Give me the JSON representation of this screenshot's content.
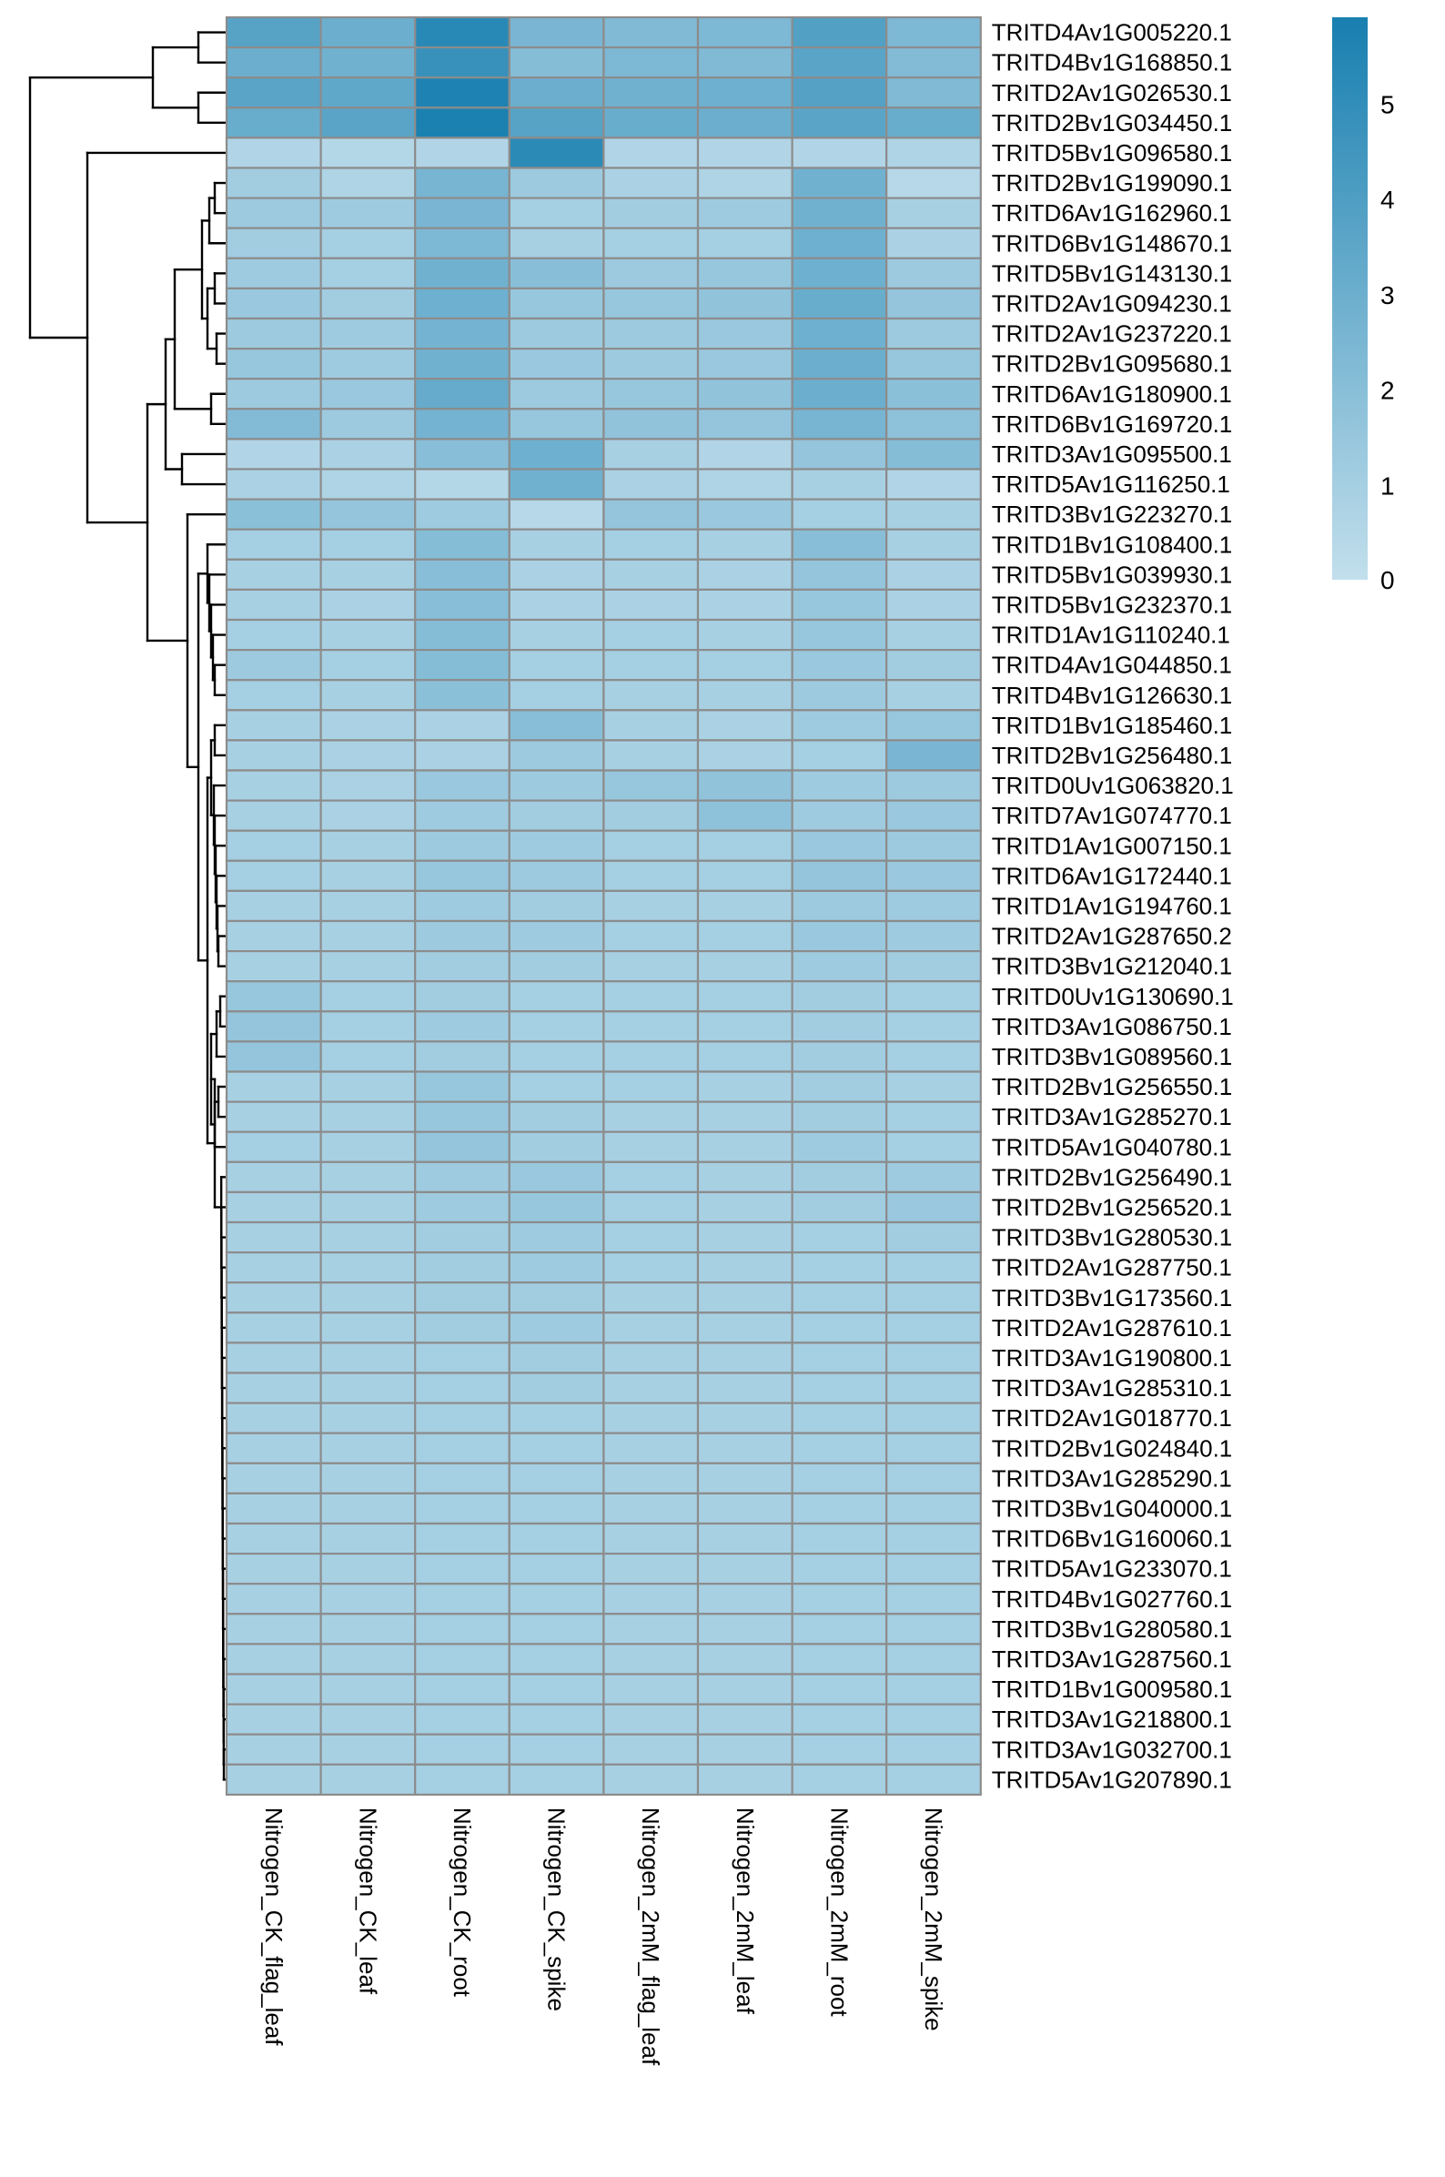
{
  "chart_data": {
    "type": "heatmap",
    "title": "",
    "xlabel": "",
    "ylabel": "",
    "columns": [
      "Nitrogen_CK_flag_leaf",
      "Nitrogen_CK_leaf",
      "Nitrogen_CK_root",
      "Nitrogen_CK_spike",
      "Nitrogen_2mM_flag_leaf",
      "Nitrogen_2mM_leaf",
      "Nitrogen_2mM_root",
      "Nitrogen_2mM_spike"
    ],
    "rows": [
      "TRITD4Av1G005220.1",
      "TRITD4Bv1G168850.1",
      "TRITD2Av1G026530.1",
      "TRITD2Bv1G034450.1",
      "TRITD5Bv1G096580.1",
      "TRITD2Bv1G199090.1",
      "TRITD6Av1G162960.1",
      "TRITD6Bv1G148670.1",
      "TRITD5Bv1G143130.1",
      "TRITD2Av1G094230.1",
      "TRITD2Av1G237220.1",
      "TRITD2Bv1G095680.1",
      "TRITD6Av1G180900.1",
      "TRITD6Bv1G169720.1",
      "TRITD3Av1G095500.1",
      "TRITD5Av1G116250.1",
      "TRITD3Bv1G223270.1",
      "TRITD1Bv1G108400.1",
      "TRITD5Bv1G039930.1",
      "TRITD5Bv1G232370.1",
      "TRITD1Av1G110240.1",
      "TRITD4Av1G044850.1",
      "TRITD4Bv1G126630.1",
      "TRITD1Bv1G185460.1",
      "TRITD2Bv1G256480.1",
      "TRITD0Uv1G063820.1",
      "TRITD7Av1G074770.1",
      "TRITD1Av1G007150.1",
      "TRITD6Av1G172440.1",
      "TRITD1Av1G194760.1",
      "TRITD2Av1G287650.2",
      "TRITD3Bv1G212040.1",
      "TRITD0Uv1G130690.1",
      "TRITD3Av1G086750.1",
      "TRITD3Bv1G089560.1",
      "TRITD2Bv1G256550.1",
      "TRITD3Av1G285270.1",
      "TRITD5Av1G040780.1",
      "TRITD2Bv1G256490.1",
      "TRITD2Bv1G256520.1",
      "TRITD3Bv1G280530.1",
      "TRITD2Av1G287750.1",
      "TRITD3Bv1G173560.1",
      "TRITD2Av1G287610.1",
      "TRITD3Av1G190800.1",
      "TRITD3Av1G285310.1",
      "TRITD2Av1G018770.1",
      "TRITD2Bv1G024840.1",
      "TRITD3Av1G285290.1",
      "TRITD3Bv1G040000.1",
      "TRITD6Bv1G160060.1",
      "TRITD5Av1G233070.1",
      "TRITD4Bv1G027760.1",
      "TRITD3Bv1G280580.1",
      "TRITD3Av1G287560.1",
      "TRITD1Bv1G009580.1",
      "TRITD3Av1G218800.1",
      "TRITD3Av1G032700.1",
      "TRITD5Av1G207890.1"
    ],
    "values": [
      [
        3.7,
        3.0,
        5.3,
        2.5,
        2.3,
        2.4,
        3.9,
        2.4
      ],
      [
        3.0,
        2.8,
        4.8,
        2.1,
        2.4,
        2.3,
        3.6,
        2.2
      ],
      [
        3.6,
        3.4,
        5.7,
        3.0,
        2.8,
        2.9,
        3.8,
        2.3
      ],
      [
        3.1,
        3.6,
        5.8,
        3.7,
        3.1,
        3.0,
        3.6,
        3.1
      ],
      [
        0.6,
        0.5,
        0.6,
        5.2,
        0.6,
        0.6,
        0.6,
        0.7
      ],
      [
        1.1,
        0.7,
        2.6,
        1.3,
        0.8,
        0.7,
        2.8,
        0.4
      ],
      [
        1.3,
        1.2,
        2.5,
        1.0,
        1.1,
        1.2,
        2.8,
        0.9
      ],
      [
        1.1,
        1.0,
        2.4,
        0.9,
        1.0,
        1.0,
        2.9,
        0.8
      ],
      [
        1.2,
        1.0,
        2.8,
        2.0,
        1.3,
        1.5,
        2.9,
        1.3
      ],
      [
        1.4,
        1.1,
        2.9,
        1.5,
        1.5,
        1.7,
        3.1,
        1.6
      ],
      [
        1.3,
        1.2,
        2.7,
        1.3,
        1.3,
        1.4,
        2.9,
        1.3
      ],
      [
        1.5,
        1.2,
        2.8,
        1.4,
        1.3,
        1.4,
        3.0,
        1.5
      ],
      [
        1.3,
        1.4,
        3.2,
        1.3,
        1.5,
        1.7,
        3.0,
        1.9
      ],
      [
        2.2,
        1.3,
        2.7,
        1.5,
        1.7,
        1.6,
        2.6,
        1.8
      ],
      [
        0.6,
        0.8,
        2.0,
        2.9,
        0.9,
        0.6,
        1.6,
        2.1
      ],
      [
        0.8,
        0.7,
        0.5,
        2.8,
        0.8,
        0.7,
        0.9,
        0.6
      ],
      [
        1.9,
        1.6,
        1.2,
        0.4,
        1.6,
        1.4,
        1.0,
        0.9
      ],
      [
        1.0,
        1.0,
        2.1,
        0.9,
        1.0,
        0.9,
        2.0,
        0.9
      ],
      [
        0.9,
        0.9,
        2.0,
        0.8,
        0.9,
        0.8,
        1.6,
        0.8
      ],
      [
        0.9,
        0.8,
        2.0,
        0.8,
        0.8,
        0.8,
        1.5,
        0.8
      ],
      [
        1.0,
        0.9,
        2.1,
        0.9,
        1.0,
        0.9,
        1.5,
        0.9
      ],
      [
        1.3,
        1.0,
        2.1,
        1.0,
        1.0,
        1.0,
        1.4,
        1.1
      ],
      [
        1.0,
        0.9,
        1.9,
        1.0,
        0.9,
        0.9,
        1.3,
        0.9
      ],
      [
        0.9,
        0.8,
        0.8,
        2.0,
        0.9,
        0.8,
        1.2,
        1.5
      ],
      [
        0.9,
        0.8,
        0.8,
        1.3,
        0.9,
        0.8,
        1.0,
        2.5
      ],
      [
        0.9,
        0.8,
        1.4,
        1.3,
        1.5,
        1.7,
        1.2,
        1.3
      ],
      [
        0.9,
        0.8,
        1.2,
        1.1,
        1.1,
        1.8,
        1.2,
        1.4
      ],
      [
        1.0,
        0.9,
        1.3,
        1.2,
        1.0,
        1.0,
        1.4,
        1.3
      ],
      [
        1.0,
        0.9,
        1.5,
        1.3,
        1.0,
        1.0,
        1.6,
        1.4
      ],
      [
        0.9,
        0.9,
        1.2,
        1.1,
        0.9,
        0.9,
        1.3,
        1.2
      ],
      [
        0.9,
        0.9,
        1.3,
        1.2,
        1.0,
        1.0,
        1.4,
        1.2
      ],
      [
        0.9,
        0.9,
        1.1,
        1.1,
        0.9,
        0.9,
        1.2,
        1.1
      ],
      [
        1.5,
        1.0,
        1.1,
        1.0,
        1.0,
        1.0,
        1.1,
        1.0
      ],
      [
        1.6,
        1.0,
        1.2,
        1.0,
        1.0,
        1.0,
        1.1,
        1.0
      ],
      [
        1.6,
        1.0,
        1.1,
        1.0,
        1.0,
        1.0,
        1.1,
        1.0
      ],
      [
        0.9,
        0.9,
        1.5,
        1.0,
        1.0,
        0.9,
        1.1,
        0.9
      ],
      [
        0.9,
        0.9,
        1.5,
        1.1,
        0.9,
        0.9,
        1.1,
        1.0
      ],
      [
        1.0,
        0.9,
        1.6,
        1.1,
        0.9,
        0.9,
        1.2,
        1.0
      ],
      [
        0.9,
        0.9,
        1.2,
        1.4,
        1.0,
        0.9,
        1.1,
        1.2
      ],
      [
        0.9,
        0.9,
        1.2,
        1.5,
        1.0,
        0.9,
        1.1,
        1.4
      ],
      [
        0.9,
        0.9,
        1.1,
        1.2,
        1.0,
        0.9,
        1.0,
        1.1
      ],
      [
        0.9,
        0.9,
        1.1,
        1.2,
        1.0,
        0.9,
        1.0,
        1.0
      ],
      [
        0.9,
        0.9,
        1.1,
        1.1,
        0.9,
        0.9,
        1.0,
        1.0
      ],
      [
        0.9,
        0.9,
        1.1,
        1.2,
        0.9,
        0.9,
        1.0,
        1.0
      ],
      [
        0.9,
        0.9,
        1.0,
        1.1,
        0.9,
        0.9,
        1.0,
        1.0
      ],
      [
        0.9,
        0.9,
        1.0,
        1.1,
        0.9,
        0.9,
        1.0,
        1.0
      ],
      [
        0.9,
        0.9,
        1.0,
        1.0,
        0.9,
        0.9,
        1.0,
        1.0
      ],
      [
        0.9,
        0.9,
        1.0,
        1.0,
        0.9,
        0.9,
        1.0,
        1.0
      ],
      [
        0.9,
        0.9,
        1.0,
        1.0,
        0.9,
        0.9,
        1.0,
        1.0
      ],
      [
        0.9,
        0.9,
        1.0,
        1.0,
        0.9,
        0.9,
        1.0,
        1.0
      ],
      [
        0.9,
        0.9,
        1.0,
        1.0,
        0.9,
        0.9,
        1.0,
        1.0
      ],
      [
        0.9,
        0.9,
        1.0,
        1.0,
        0.9,
        0.9,
        1.0,
        1.0
      ],
      [
        0.9,
        0.9,
        1.0,
        1.0,
        0.9,
        0.9,
        1.0,
        1.0
      ],
      [
        0.9,
        0.9,
        1.0,
        1.0,
        0.9,
        0.9,
        1.0,
        1.0
      ],
      [
        0.9,
        0.9,
        1.0,
        1.0,
        0.9,
        0.9,
        1.0,
        1.0
      ],
      [
        0.9,
        0.9,
        1.0,
        1.0,
        0.9,
        0.9,
        1.0,
        1.0
      ],
      [
        0.9,
        0.9,
        1.0,
        1.0,
        0.9,
        0.9,
        1.0,
        1.0
      ],
      [
        0.9,
        0.9,
        1.0,
        1.0,
        0.9,
        0.9,
        1.0,
        1.0
      ],
      [
        0.9,
        0.9,
        1.0,
        1.0,
        0.9,
        0.9,
        1.0,
        1.0
      ]
    ],
    "color_scale": {
      "min": 0,
      "max": 5.9,
      "low_color": "#c2dfec",
      "high_color": "#187fb0"
    },
    "legend": {
      "ticks": [
        0,
        1,
        2,
        3,
        4,
        5
      ],
      "placement": "top-right"
    },
    "cell_border_color": "#8c8c8c",
    "dendrogram": "rows",
    "grid": false
  }
}
